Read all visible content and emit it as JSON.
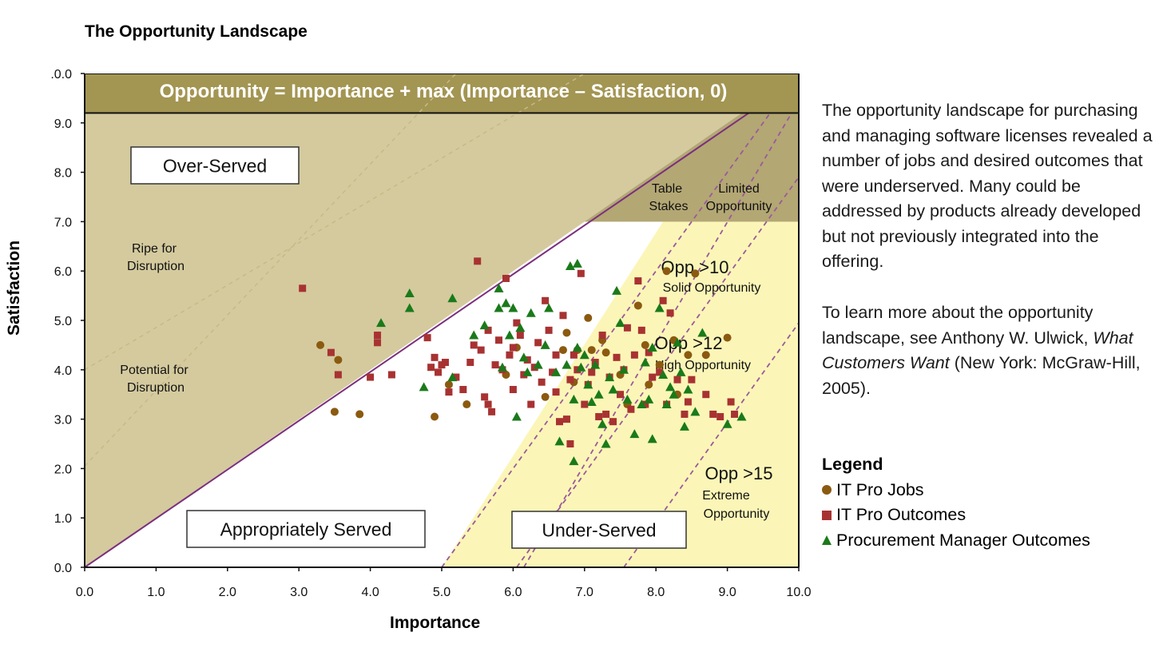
{
  "page_title": "The Opportunity Landscape",
  "side_text": {
    "p1": "The opportunity landscape for purchasing and managing software licenses revealed a number of jobs and desired outcomes that were underserved. Many could be addressed by products already developed but not previously integrated into the offering.",
    "p2_before": "To learn more about the opportunity landscape, see Anthony W. Ulwick, ",
    "p2_italic": "What Customers Want",
    "p2_after": " (New York: McGraw-Hill, 2005)."
  },
  "legend": {
    "title": "Legend",
    "items": [
      {
        "label": "IT Pro Jobs",
        "shape": "circle",
        "color": "#8b5a10"
      },
      {
        "label": "IT Pro Outcomes",
        "shape": "square",
        "color": "#a83232"
      },
      {
        "label": "Procurement Manager Outcomes",
        "shape": "triangle",
        "color": "#1a7a1a"
      }
    ]
  },
  "chart_data": {
    "type": "scatter",
    "title": "",
    "banner": "Opportunity = Importance + max (Importance – Satisfaction, 0)",
    "xlabel": "Importance",
    "ylabel": "Satisfaction",
    "xlim": [
      0,
      10
    ],
    "ylim": [
      0,
      10
    ],
    "x_ticks": [
      "0.0",
      "1.0",
      "2.0",
      "3.0",
      "4.0",
      "5.0",
      "6.0",
      "7.0",
      "8.0",
      "9.0",
      "10.0"
    ],
    "y_ticks": [
      ".0.0",
      "9.0",
      "8.0",
      "7.0",
      "6.0",
      "5.0",
      "4.0",
      "3.0",
      "2.0",
      "1.0",
      "0.0"
    ],
    "grid": false,
    "colors": {
      "banner": "#a39552",
      "over_served": "#d4ca9e",
      "table_stakes": "#b3a774",
      "under_served": "#fbf6b7",
      "diagonal": "#7b2f7d",
      "dashed": "#9a5a9c",
      "faint_dashed": "#c8b985"
    },
    "region_labels": {
      "over_served": "Over-Served",
      "appropriately_served": "Appropriately Served",
      "under_served": "Under-Served",
      "ripe_1": "Ripe for",
      "ripe_2": "Disruption",
      "potential_1": "Potential for",
      "potential_2": "Disruption",
      "table": "Table",
      "stakes": "Stakes",
      "limited": "Limited",
      "opportunity": "Opportunity",
      "opp10": "Opp >10",
      "opp10_sub": "Solid Opportunity",
      "opp12": "Opp >12",
      "opp12_sub": "High Opportunity",
      "opp15": "Opp >15",
      "opp15_sub1": "Extreme",
      "opp15_sub2": "Opportunity"
    },
    "series": [
      {
        "name": "IT Pro Jobs",
        "marker": "circle",
        "color": "#8b5a10",
        "points": [
          [
            3.3,
            4.5
          ],
          [
            3.5,
            3.15
          ],
          [
            3.55,
            4.2
          ],
          [
            3.85,
            3.1
          ],
          [
            4.9,
            3.05
          ],
          [
            5.1,
            3.7
          ],
          [
            5.35,
            3.3
          ],
          [
            5.9,
            3.9
          ],
          [
            6.05,
            4.45
          ],
          [
            6.45,
            3.45
          ],
          [
            6.7,
            4.4
          ],
          [
            6.75,
            4.75
          ],
          [
            6.85,
            3.75
          ],
          [
            6.9,
            4.4
          ],
          [
            7.05,
            5.05
          ],
          [
            7.1,
            4.4
          ],
          [
            7.25,
            4.6
          ],
          [
            7.3,
            4.35
          ],
          [
            7.5,
            3.9
          ],
          [
            7.6,
            3.3
          ],
          [
            7.75,
            5.3
          ],
          [
            7.85,
            4.5
          ],
          [
            7.9,
            3.7
          ],
          [
            8.05,
            4.1
          ],
          [
            8.15,
            6.0
          ],
          [
            8.25,
            4.6
          ],
          [
            8.3,
            3.5
          ],
          [
            8.45,
            4.3
          ],
          [
            8.55,
            5.95
          ],
          [
            8.7,
            4.3
          ],
          [
            9.0,
            4.65
          ]
        ]
      },
      {
        "name": "IT Pro Outcomes",
        "marker": "square",
        "color": "#a83232",
        "points": [
          [
            3.05,
            5.65
          ],
          [
            3.45,
            4.35
          ],
          [
            3.55,
            3.9
          ],
          [
            4.0,
            3.85
          ],
          [
            4.1,
            4.7
          ],
          [
            4.1,
            4.55
          ],
          [
            4.3,
            3.9
          ],
          [
            4.8,
            4.65
          ],
          [
            4.85,
            4.05
          ],
          [
            4.9,
            4.25
          ],
          [
            4.95,
            3.95
          ],
          [
            5.0,
            4.1
          ],
          [
            5.05,
            4.15
          ],
          [
            5.1,
            3.55
          ],
          [
            5.2,
            3.85
          ],
          [
            5.3,
            3.6
          ],
          [
            5.4,
            4.15
          ],
          [
            5.45,
            4.5
          ],
          [
            5.5,
            6.2
          ],
          [
            5.55,
            4.4
          ],
          [
            5.6,
            3.45
          ],
          [
            5.65,
            4.8
          ],
          [
            5.65,
            3.3
          ],
          [
            5.7,
            3.15
          ],
          [
            5.75,
            4.1
          ],
          [
            5.8,
            4.6
          ],
          [
            5.85,
            4.0
          ],
          [
            5.9,
            5.85
          ],
          [
            5.95,
            4.3
          ],
          [
            6.0,
            4.45
          ],
          [
            6.0,
            3.6
          ],
          [
            6.05,
            4.95
          ],
          [
            6.1,
            4.7
          ],
          [
            6.15,
            3.9
          ],
          [
            6.2,
            4.2
          ],
          [
            6.25,
            3.3
          ],
          [
            6.3,
            4.05
          ],
          [
            6.35,
            4.55
          ],
          [
            6.4,
            3.75
          ],
          [
            6.45,
            5.4
          ],
          [
            6.5,
            4.8
          ],
          [
            6.55,
            3.95
          ],
          [
            6.6,
            4.3
          ],
          [
            6.6,
            3.55
          ],
          [
            6.65,
            2.95
          ],
          [
            6.7,
            5.1
          ],
          [
            6.75,
            3.0
          ],
          [
            6.8,
            2.5
          ],
          [
            6.8,
            3.8
          ],
          [
            6.85,
            4.3
          ],
          [
            6.9,
            4.0
          ],
          [
            6.95,
            5.95
          ],
          [
            7.0,
            3.3
          ],
          [
            7.05,
            3.7
          ],
          [
            7.1,
            3.95
          ],
          [
            7.15,
            4.15
          ],
          [
            7.2,
            3.05
          ],
          [
            7.25,
            4.7
          ],
          [
            7.3,
            3.1
          ],
          [
            7.35,
            3.85
          ],
          [
            7.4,
            2.95
          ],
          [
            7.45,
            4.25
          ],
          [
            7.5,
            3.5
          ],
          [
            7.55,
            4.0
          ],
          [
            7.6,
            4.85
          ],
          [
            7.65,
            3.2
          ],
          [
            7.7,
            4.3
          ],
          [
            7.75,
            5.8
          ],
          [
            7.8,
            4.8
          ],
          [
            7.85,
            3.3
          ],
          [
            7.9,
            4.35
          ],
          [
            7.95,
            3.85
          ],
          [
            8.05,
            3.95
          ],
          [
            8.1,
            5.4
          ],
          [
            8.15,
            3.3
          ],
          [
            8.2,
            5.15
          ],
          [
            8.3,
            3.8
          ],
          [
            8.4,
            3.1
          ],
          [
            8.45,
            3.35
          ],
          [
            8.5,
            3.8
          ],
          [
            8.7,
            3.5
          ],
          [
            8.8,
            3.1
          ],
          [
            8.9,
            3.05
          ],
          [
            9.05,
            3.35
          ],
          [
            9.1,
            3.1
          ]
        ]
      },
      {
        "name": "Procurement Manager Outcomes",
        "marker": "triangle",
        "color": "#1a7a1a",
        "points": [
          [
            4.15,
            4.95
          ],
          [
            4.55,
            5.55
          ],
          [
            4.55,
            5.25
          ],
          [
            4.75,
            3.65
          ],
          [
            5.15,
            5.45
          ],
          [
            5.15,
            3.85
          ],
          [
            5.45,
            4.7
          ],
          [
            5.6,
            4.9
          ],
          [
            5.8,
            5.65
          ],
          [
            5.8,
            5.25
          ],
          [
            5.85,
            4.05
          ],
          [
            5.9,
            5.35
          ],
          [
            5.95,
            4.7
          ],
          [
            6.0,
            5.25
          ],
          [
            6.05,
            3.05
          ],
          [
            6.1,
            4.85
          ],
          [
            6.15,
            4.25
          ],
          [
            6.2,
            3.95
          ],
          [
            6.25,
            5.15
          ],
          [
            6.35,
            4.1
          ],
          [
            6.45,
            4.5
          ],
          [
            6.5,
            5.25
          ],
          [
            6.6,
            3.95
          ],
          [
            6.65,
            2.55
          ],
          [
            6.75,
            4.1
          ],
          [
            6.8,
            6.1
          ],
          [
            6.85,
            3.4
          ],
          [
            6.85,
            2.15
          ],
          [
            6.9,
            6.15
          ],
          [
            6.9,
            4.45
          ],
          [
            6.95,
            4.05
          ],
          [
            7.0,
            4.3
          ],
          [
            7.05,
            3.7
          ],
          [
            7.1,
            3.35
          ],
          [
            7.15,
            4.1
          ],
          [
            7.2,
            3.5
          ],
          [
            7.25,
            2.9
          ],
          [
            7.3,
            2.5
          ],
          [
            7.35,
            3.85
          ],
          [
            7.4,
            3.6
          ],
          [
            7.45,
            5.6
          ],
          [
            7.5,
            4.95
          ],
          [
            7.55,
            4.0
          ],
          [
            7.6,
            3.4
          ],
          [
            7.7,
            2.7
          ],
          [
            7.8,
            3.3
          ],
          [
            7.85,
            4.15
          ],
          [
            7.9,
            3.4
          ],
          [
            7.95,
            2.6
          ],
          [
            7.95,
            4.45
          ],
          [
            8.05,
            5.25
          ],
          [
            8.1,
            3.9
          ],
          [
            8.15,
            3.3
          ],
          [
            8.2,
            3.65
          ],
          [
            8.25,
            3.5
          ],
          [
            8.3,
            4.55
          ],
          [
            8.35,
            3.95
          ],
          [
            8.4,
            2.85
          ],
          [
            8.45,
            3.6
          ],
          [
            8.55,
            3.15
          ],
          [
            8.65,
            4.75
          ],
          [
            9.0,
            2.9
          ],
          [
            9.2,
            3.05
          ]
        ]
      }
    ]
  }
}
